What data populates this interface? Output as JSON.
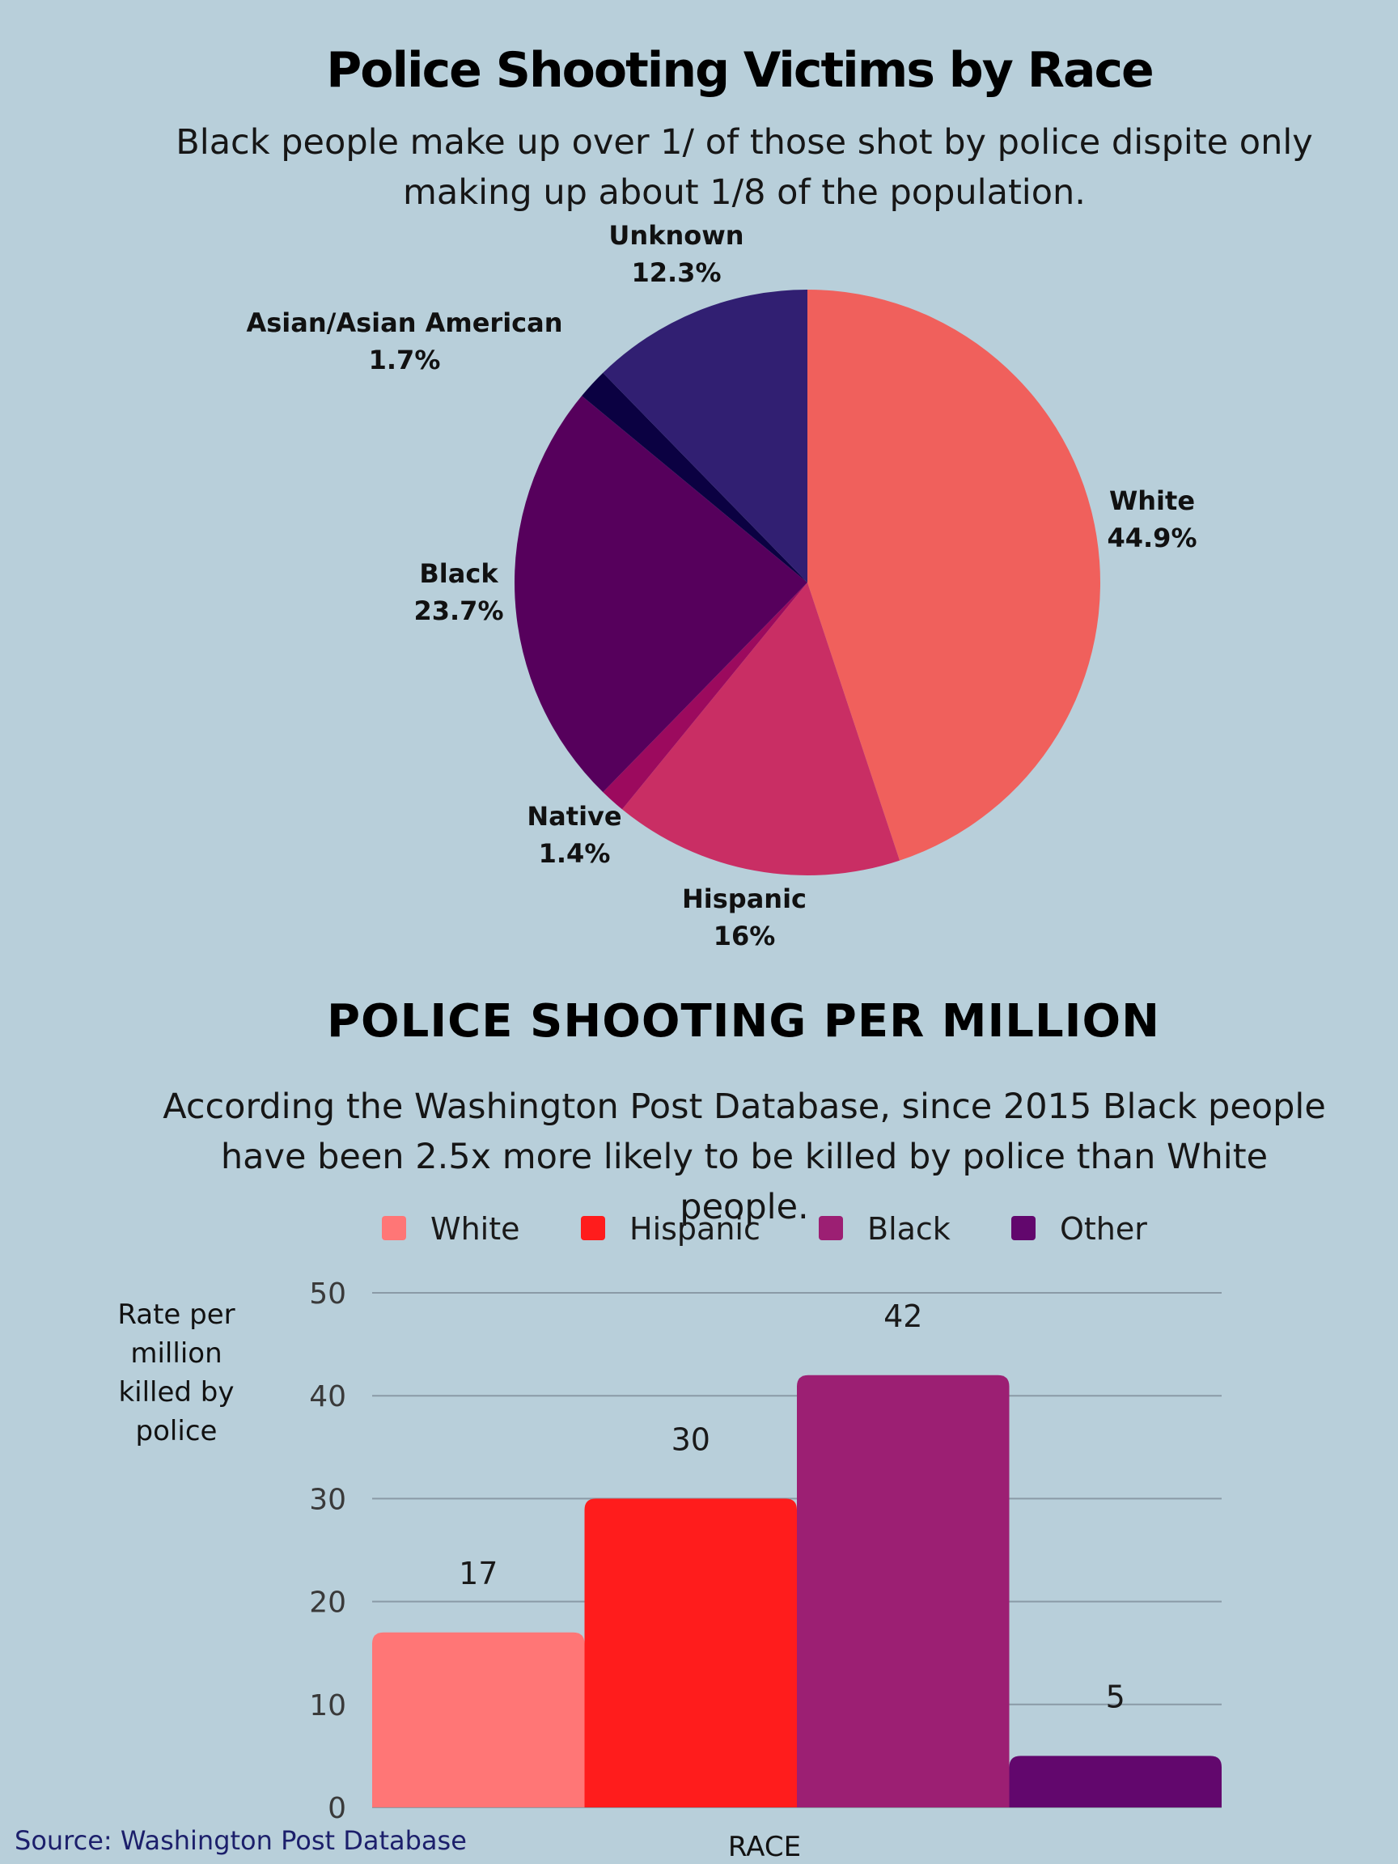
{
  "chart_data": [
    {
      "type": "pie",
      "title": "Police Shooting Victims by Race",
      "subtitle": "Black people make up over 1/ of those shot by police dispite only making up about 1/8 of the population.",
      "slices": [
        {
          "label": "White",
          "value": 44.9,
          "value_label": "44.9%",
          "color": "#f0605c"
        },
        {
          "label": "Hispanic",
          "value": 16,
          "value_label": "16%",
          "color": "#c92e64"
        },
        {
          "label": "Native",
          "value": 1.4,
          "value_label": "1.4%",
          "color": "#9c0a5e"
        },
        {
          "label": "Black",
          "value": 23.7,
          "value_label": "23.7%",
          "color": "#56005c"
        },
        {
          "label": "Asian/Asian American",
          "value": 1.7,
          "value_label": "1.7%",
          "color": "#0b0142"
        },
        {
          "label": "Unknown",
          "value": 12.3,
          "value_label": "12.3%",
          "color": "#311f72"
        }
      ]
    },
    {
      "type": "bar",
      "title": "POLICE SHOOTING PER MILLION",
      "subtitle": "According the Washington Post Database, since 2015 Black people have been 2.5x more likely to be killed by police than White people.",
      "ylabel": "Rate per million killed by police",
      "xlabel": "RACE",
      "ylim": [
        0,
        50
      ],
      "yticks": [
        0,
        10,
        20,
        30,
        40,
        50
      ],
      "grid": true,
      "legend_position": "top",
      "series": [
        {
          "name": "White",
          "values": [
            17
          ],
          "color": "#ff7676"
        },
        {
          "name": "Hispanic",
          "values": [
            30
          ],
          "color": "#ff1c1c"
        },
        {
          "name": "Black",
          "values": [
            42
          ],
          "color": "#9c1f73"
        },
        {
          "name": "Other",
          "values": [
            5
          ],
          "color": "#62076d"
        }
      ]
    }
  ],
  "source": "Source: Washington Post Database"
}
